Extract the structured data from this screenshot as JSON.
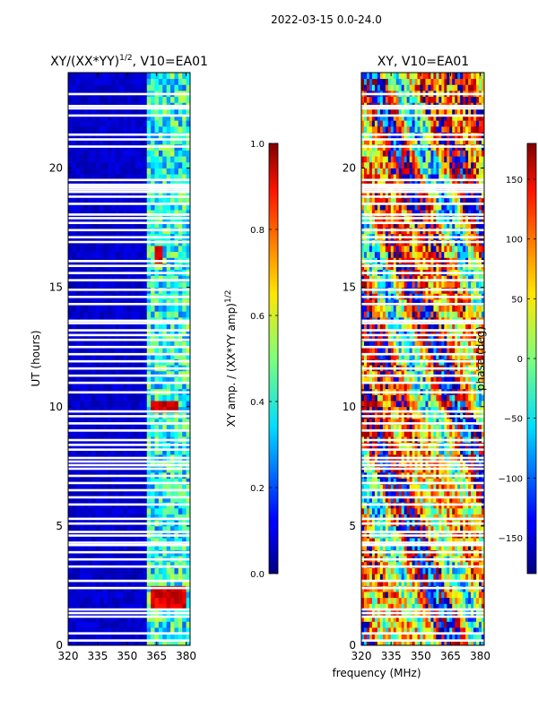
{
  "chart_data": {
    "type": "heatmap",
    "suptitle": "2022-03-15 0.0-24.0",
    "shared_xlabel": "frequency (MHz)",
    "panels": [
      {
        "title": "XY/(XX*YY)",
        "title_exp": "1/2",
        "title_suffix": ", V10=EA01",
        "ylabel": "UT (hours)",
        "xlim": [
          320,
          382
        ],
        "ylim": [
          0,
          24
        ],
        "xticks": [
          320,
          335,
          350,
          365,
          380
        ],
        "yticks": [
          0,
          5,
          10,
          15,
          20
        ],
        "colorbar": {
          "label": "XY amp. / (XX*YY amp)",
          "label_exp": "1/2",
          "range": [
            0,
            1
          ],
          "ticks": [
            "0.0",
            "0.2",
            "0.4",
            "0.6",
            "0.8",
            "1.0"
          ],
          "tick_values": [
            0,
            0.2,
            0.4,
            0.6,
            0.8,
            1.0
          ]
        },
        "description": "Normalized XY amplitude, mostly near 0 below 360 MHz; elevated (0.3-0.7) in channels 360-380 MHz; peaks near 1 at ~2 h and ~10 h and ~16.5 h.",
        "bright_features": [
          {
            "freq": [
              361,
              380
            ],
            "ut": [
              1.8,
              2.2
            ],
            "value": 0.95
          },
          {
            "freq": [
              361,
              375
            ],
            "ut": [
              9.9,
              10.1
            ],
            "value": 0.85
          },
          {
            "freq": [
              364,
              368
            ],
            "ut": [
              16.2,
              16.6
            ],
            "value": 0.85
          }
        ]
      },
      {
        "title": "XY, V10=EA01",
        "xlim": [
          320,
          382
        ],
        "ylim": [
          0,
          24
        ],
        "xticks": [
          320,
          335,
          350,
          365,
          380
        ],
        "yticks": [
          0,
          5,
          10,
          15,
          20
        ],
        "colorbar": {
          "label": "phase (deg)",
          "range": [
            -180,
            180
          ],
          "ticks": [
            "150",
            "100",
            "50",
            "0",
            "−50",
            "−100",
            "−150"
          ],
          "tick_values": [
            150,
            100,
            50,
            0,
            -50,
            -100,
            -150
          ]
        },
        "description": "XY phase, noisy with wrapped values spanning -180 to 180 deg."
      }
    ],
    "flagged_ut_rows": [
      0.2,
      0.5,
      1.2,
      1.35,
      1.5,
      2.4,
      2.7,
      3.3,
      3.6,
      3.9,
      4.2,
      4.3,
      4.6,
      4.75,
      5.1,
      5.3,
      5.9,
      6.2,
      6.5,
      6.8,
      7.1,
      7.4,
      7.55,
      7.7,
      7.85,
      8.2,
      8.4,
      8.6,
      9.0,
      9.3,
      9.6,
      9.8,
      10.6,
      11.0,
      11.3,
      11.6,
      11.9,
      12.2,
      12.5,
      12.8,
      13.0,
      13.2,
      13.5,
      13.6,
      14.3,
      14.6,
      14.9,
      15.3,
      15.6,
      15.9,
      16.1,
      16.9,
      17.1,
      17.4,
      17.7,
      17.9,
      18.05,
      18.5,
      18.8,
      19.0,
      19.1,
      19.2,
      19.3,
      19.5,
      20.9,
      21.2,
      21.4,
      22.2,
      22.5,
      22.6,
      23.1
    ]
  }
}
